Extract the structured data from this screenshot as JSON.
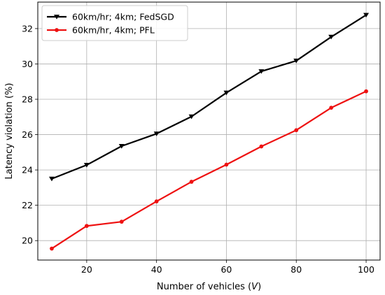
{
  "chart_data": {
    "type": "line",
    "title": "",
    "xlabel": "Number of vehicles (",
    "xlabel_var": "V",
    "xlabel_suffix": ")",
    "ylabel": "Latency violation (%)",
    "xlim": [
      6,
      104
    ],
    "ylim": [
      18.9,
      33.5
    ],
    "xticks": [
      20,
      40,
      60,
      80,
      100
    ],
    "yticks": [
      20,
      22,
      24,
      26,
      28,
      30,
      32
    ],
    "grid": true,
    "legend_position": "top-left",
    "x": [
      10,
      20,
      30,
      40,
      50,
      60,
      70,
      80,
      90,
      100
    ],
    "series": [
      {
        "name": "60km/hr; 4km; FedSGD",
        "color": "#000000",
        "marker": "triangle-down",
        "values": [
          23.5,
          24.28,
          25.35,
          26.05,
          27.02,
          28.37,
          29.58,
          30.18,
          31.53,
          32.77
        ]
      },
      {
        "name": "60km/hr, 4km; PFL",
        "color": "#ee1111",
        "marker": "circle",
        "values": [
          19.55,
          20.83,
          21.07,
          22.22,
          23.33,
          24.3,
          25.33,
          26.25,
          27.52,
          28.45
        ]
      }
    ]
  }
}
